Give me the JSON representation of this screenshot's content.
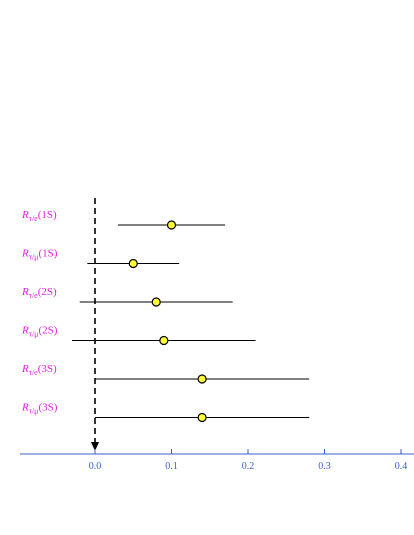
{
  "colors": {
    "axis": "#3a5fcd",
    "tick_label": "#3a5fcd",
    "row_label": "#e020e0",
    "error_bar": "#000000",
    "point_fill": "#ffff33",
    "point_stroke": "#000000",
    "reference_line": "#000000"
  },
  "chart_data": {
    "type": "scatter",
    "title": "",
    "xlabel": "",
    "ylabel": "",
    "xlim": [
      -0.1,
      0.42
    ],
    "x_ticks": [
      "0.0",
      "0.1",
      "0.2",
      "0.3",
      "0.4"
    ],
    "x_tick_values": [
      0.0,
      0.1,
      0.2,
      0.3,
      0.4
    ],
    "reference_line": {
      "x": 0.0,
      "style": "dashed",
      "arrow": "down"
    },
    "grid": false,
    "legend": "none",
    "series": [
      {
        "label_main": "R",
        "label_sub": "τ/e",
        "label_suffix": "(1S)",
        "value": 0.1,
        "err_low": 0.03,
        "err_high": 0.17
      },
      {
        "label_main": "R",
        "label_sub": "τ/μ",
        "label_suffix": "(1S)",
        "value": 0.05,
        "err_low": -0.01,
        "err_high": 0.11
      },
      {
        "label_main": "R",
        "label_sub": "τ/e",
        "label_suffix": "(2S)",
        "value": 0.08,
        "err_low": -0.02,
        "err_high": 0.18
      },
      {
        "label_main": "R",
        "label_sub": "τ/μ",
        "label_suffix": "(2S)",
        "value": 0.09,
        "err_low": -0.03,
        "err_high": 0.21
      },
      {
        "label_main": "R",
        "label_sub": "τ/e",
        "label_suffix": "(3S)",
        "value": 0.14,
        "err_low": 0.0,
        "err_high": 0.28
      },
      {
        "label_main": "R",
        "label_sub": "τ/μ",
        "label_suffix": "(3S)",
        "value": 0.14,
        "err_low": 0.0,
        "err_high": 0.28
      }
    ]
  }
}
